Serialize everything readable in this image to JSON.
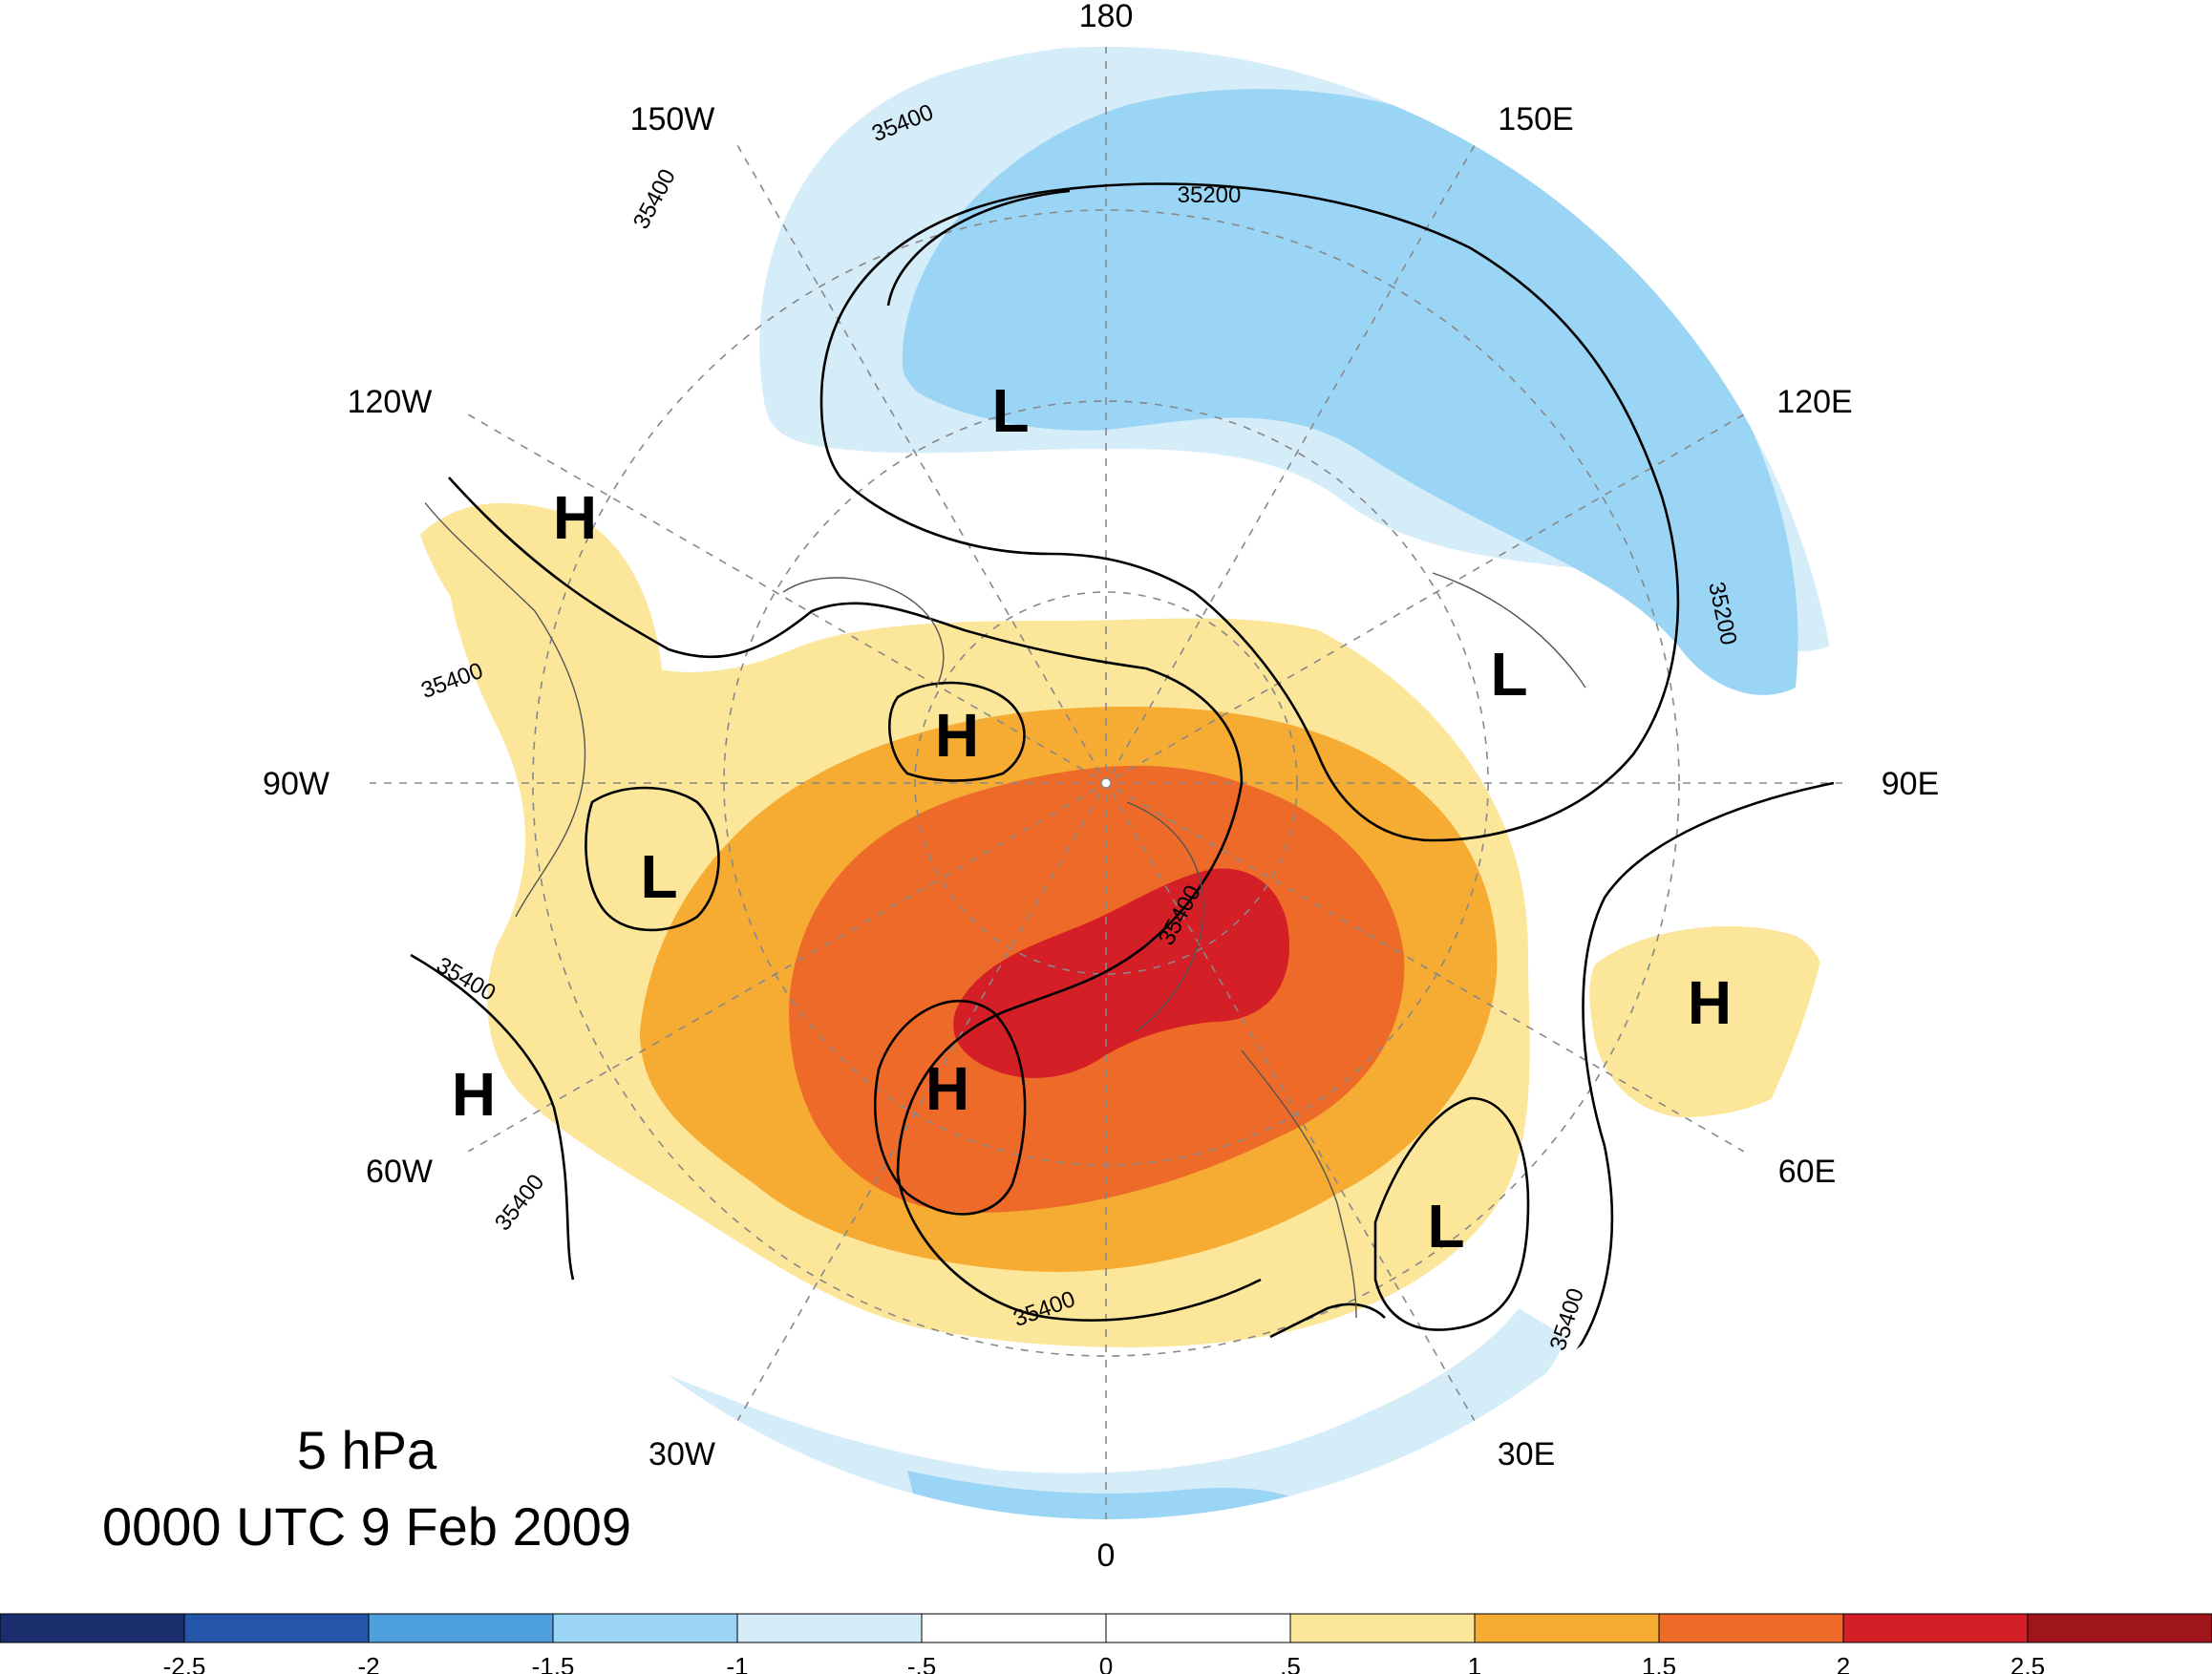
{
  "title": {
    "level": "5 hPa",
    "datetime": "0000 UTC 9 Feb 2009"
  },
  "longitude_labels": [
    "180",
    "150E",
    "120E",
    "90E",
    "60E",
    "30E",
    "0",
    "30W",
    "60W",
    "90W",
    "120W",
    "150W"
  ],
  "pressure_centers": [
    {
      "label": "L",
      "name": "low-north-pacific"
    },
    {
      "label": "L",
      "name": "low-east-siberia"
    },
    {
      "label": "L",
      "name": "low-hudson-bay"
    },
    {
      "label": "L",
      "name": "low-eastern-europe"
    },
    {
      "label": "H",
      "name": "high-western-canada"
    },
    {
      "label": "H",
      "name": "high-canadian-archipelago"
    },
    {
      "label": "H",
      "name": "high-greenland-sea"
    },
    {
      "label": "H",
      "name": "high-western-atlantic"
    },
    {
      "label": "H",
      "name": "high-central-asia"
    }
  ],
  "contour_labels": [
    "35400",
    "35400",
    "35200",
    "35200",
    "35400",
    "35400",
    "35400",
    "35400",
    "35400",
    "35400"
  ],
  "colorbar": {
    "ticks": [
      "-2.5",
      "-2",
      "-1.5",
      "-1",
      "-.5",
      "0",
      ".5",
      "1",
      "1.5",
      "2",
      "2.5"
    ],
    "colors": [
      "#1a2e6e",
      "#2356a8",
      "#4d9fdd",
      "#9bd5f5",
      "#d5ecf9",
      "#ffffff",
      "#ffffff",
      "#fbe69a",
      "#f6ab32",
      "#ee6a29",
      "#d41f26",
      "#a0141c"
    ]
  },
  "colors": {
    "light_blue": "#d5ecf9",
    "mid_blue": "#9bd5f5",
    "light_yellow": "#fbe69a",
    "orange": "#f6ab32",
    "dark_orange": "#ee6a29",
    "red": "#d41f26"
  }
}
